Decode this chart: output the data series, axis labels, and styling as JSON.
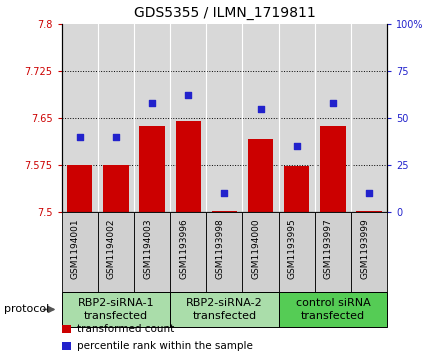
{
  "title": "GDS5355 / ILMN_1719811",
  "samples": [
    "GSM1194001",
    "GSM1194002",
    "GSM1194003",
    "GSM1193996",
    "GSM1193998",
    "GSM1194000",
    "GSM1193995",
    "GSM1193997",
    "GSM1193999"
  ],
  "transformed_counts": [
    7.575,
    7.575,
    7.638,
    7.645,
    7.502,
    7.616,
    7.573,
    7.638,
    7.502
  ],
  "percentile_ranks": [
    40,
    40,
    58,
    62,
    10,
    55,
    35,
    58,
    10
  ],
  "ylim_left": [
    7.5,
    7.8
  ],
  "yticks_left": [
    7.5,
    7.575,
    7.65,
    7.725,
    7.8
  ],
  "ylim_right": [
    0,
    100
  ],
  "yticks_right": [
    0,
    25,
    50,
    75,
    100
  ],
  "bar_color": "#cc0000",
  "dot_color": "#2222cc",
  "groups": [
    {
      "label": "RBP2-siRNA-1\ntransfected",
      "indices": [
        0,
        1,
        2
      ],
      "color": "#aaddaa"
    },
    {
      "label": "RBP2-siRNA-2\ntransfected",
      "indices": [
        3,
        4,
        5
      ],
      "color": "#aaddaa"
    },
    {
      "label": "control siRNA\ntransfected",
      "indices": [
        6,
        7,
        8
      ],
      "color": "#55cc55"
    }
  ],
  "protocol_label": "protocol",
  "legend_items": [
    {
      "color": "#cc0000",
      "label": "transformed count"
    },
    {
      "color": "#2222cc",
      "label": "percentile rank within the sample"
    }
  ],
  "grid_linestyle": "dotted",
  "bar_width": 0.7,
  "background_color": "#ffffff",
  "plot_bg_color": "#d8d8d8",
  "xtick_bg_color": "#d0d0d0",
  "title_fontsize": 10,
  "tick_fontsize": 7,
  "sample_fontsize": 6.5,
  "group_fontsize": 8,
  "legend_fontsize": 7.5
}
